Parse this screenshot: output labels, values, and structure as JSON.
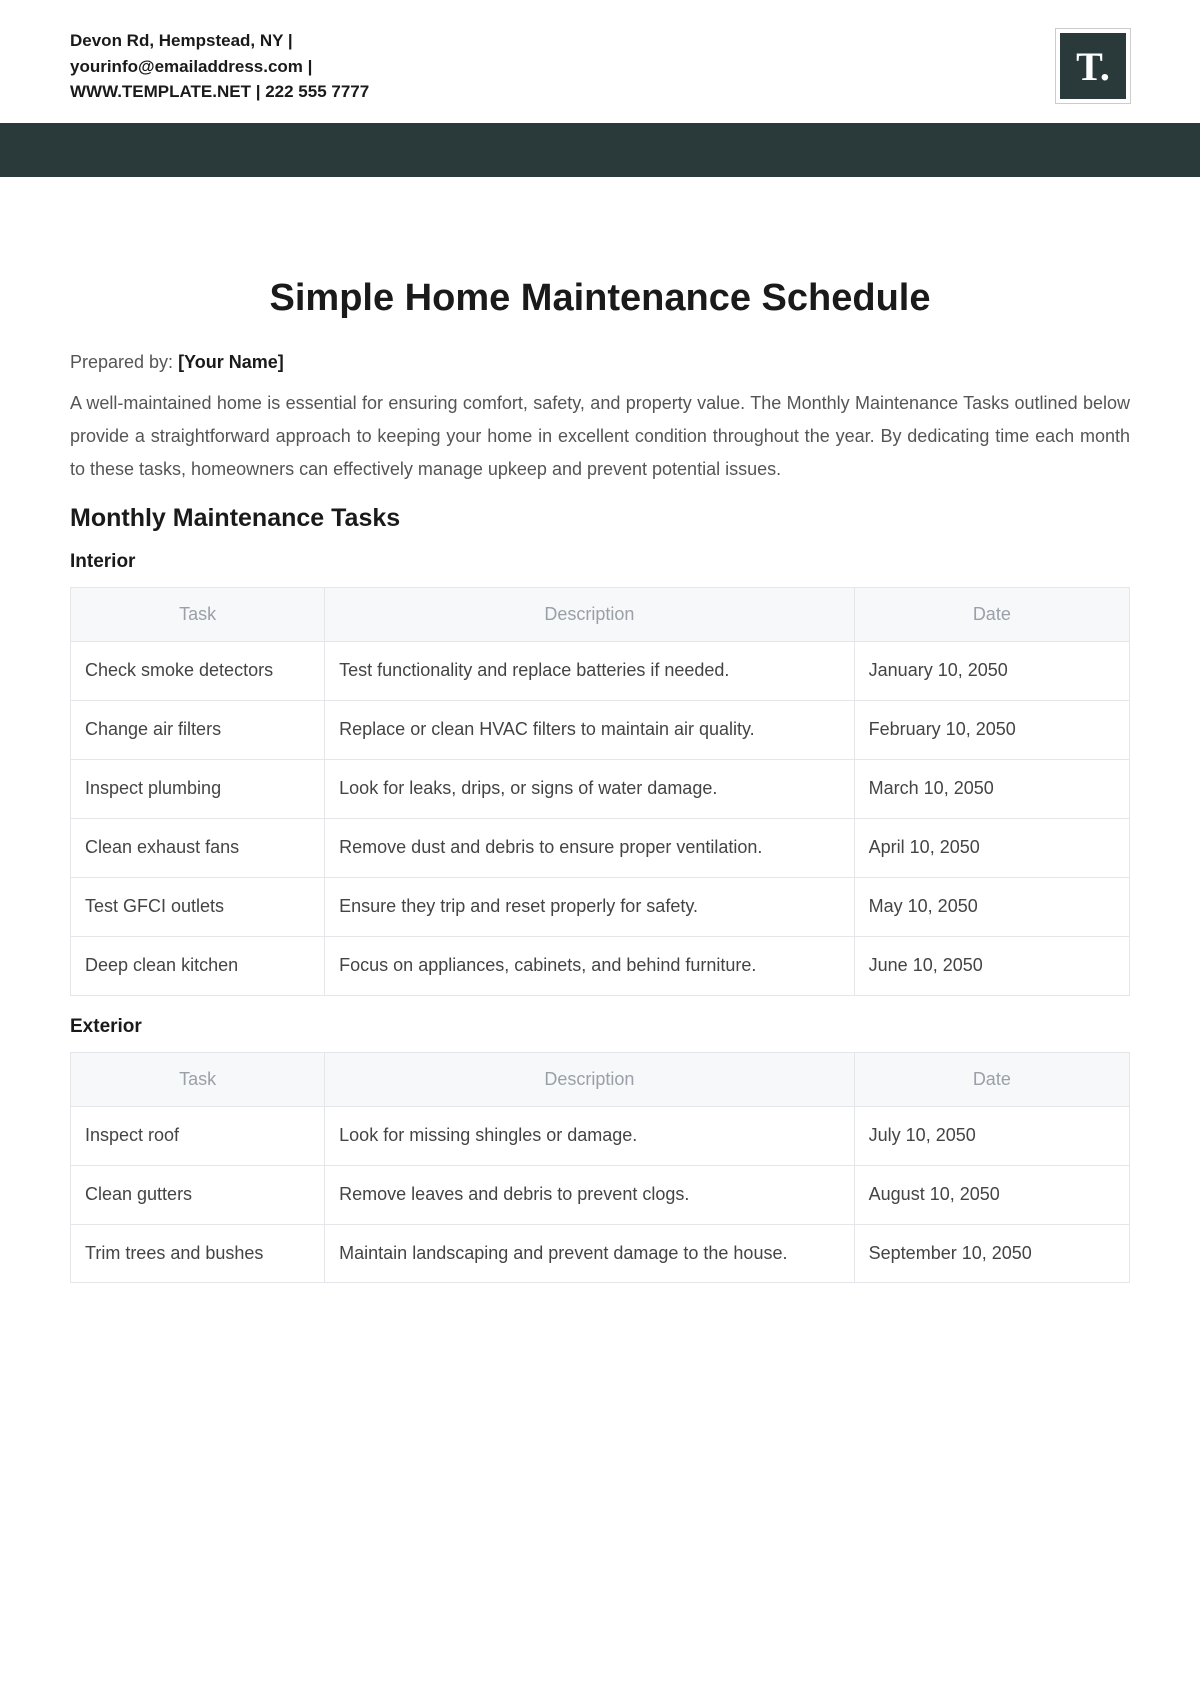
{
  "header": {
    "contact_line1": "Devon Rd, Hempstead, NY |",
    "contact_line2": "yourinfo@emailaddress.com |",
    "contact_line3": "WWW.TEMPLATE.NET | 222 555 7777",
    "logo_text": "T."
  },
  "colors": {
    "dark_bar": "#2a3a3a",
    "logo_bg": "#2a3a3a",
    "header_bg": "#f7f8f9",
    "header_text": "#9aa0a8",
    "border": "#e4e6e9",
    "body_text": "#444",
    "muted_text": "#555",
    "title_text": "#1a1a1a"
  },
  "document": {
    "title": "Simple Home Maintenance Schedule",
    "prepared_by_label": "Prepared by: ",
    "prepared_by_value": "[Your Name]",
    "intro": "A well-maintained home is essential for ensuring comfort, safety, and property value. The Monthly Maintenance Tasks outlined below provide a straightforward approach to keeping your home in excellent condition throughout the year. By dedicating time each month to these tasks, homeowners can effectively manage upkeep and prevent potential issues.",
    "section_heading": "Monthly Maintenance Tasks"
  },
  "table_headers": {
    "task": "Task",
    "description": "Description",
    "date": "Date"
  },
  "interior": {
    "title": "Interior",
    "rows": [
      {
        "task": "Check smoke detectors",
        "description": "Test functionality and replace batteries if needed.",
        "date": "January 10, 2050"
      },
      {
        "task": "Change air filters",
        "description": "Replace or clean HVAC filters to maintain air quality.",
        "date": "February 10, 2050"
      },
      {
        "task": "Inspect plumbing",
        "description": "Look for leaks, drips, or signs of water damage.",
        "date": "March 10, 2050"
      },
      {
        "task": "Clean exhaust fans",
        "description": "Remove dust and debris to ensure proper ventilation.",
        "date": "April 10, 2050"
      },
      {
        "task": "Test GFCI outlets",
        "description": "Ensure they trip and reset properly for safety.",
        "date": "May 10, 2050"
      },
      {
        "task": "Deep clean kitchen",
        "description": "Focus on appliances, cabinets, and behind furniture.",
        "date": "June 10, 2050"
      }
    ]
  },
  "exterior": {
    "title": "Exterior",
    "rows": [
      {
        "task": "Inspect roof",
        "description": "Look for missing shingles or damage.",
        "date": "July 10, 2050"
      },
      {
        "task": "Clean gutters",
        "description": "Remove leaves and debris to prevent clogs.",
        "date": "August 10, 2050"
      },
      {
        "task": "Trim trees and bushes",
        "description": "Maintain landscaping and prevent damage to the house.",
        "date": "September 10, 2050"
      }
    ]
  }
}
